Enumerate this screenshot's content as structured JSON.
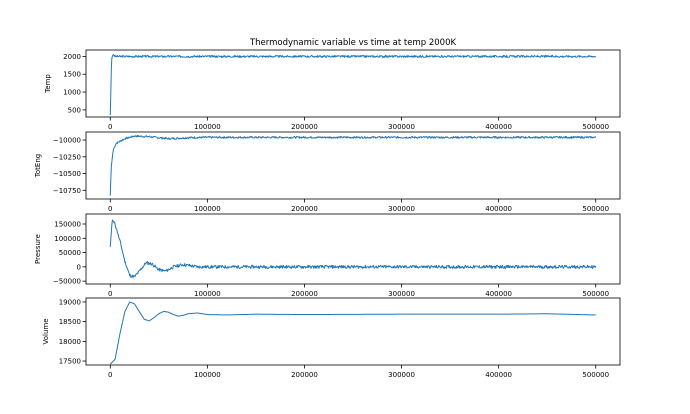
{
  "chart_data": [
    {
      "type": "line",
      "title": "Thermodynamic variable vs time at temp 2000K",
      "ylabel": "Temp",
      "xlim": [
        -25000,
        525000
      ],
      "ylim": [
        300,
        2180
      ],
      "xticks": [
        0,
        100000,
        200000,
        300000,
        400000,
        500000
      ],
      "xtick_labels": [
        "0",
        "100000",
        "200000",
        "300000",
        "400000",
        "500000"
      ],
      "yticks": [
        500,
        1000,
        1500,
        2000
      ],
      "ytick_labels": [
        "500",
        "1000",
        "1500",
        "2000"
      ],
      "series": [
        {
          "name": "Temp",
          "points": [
            [
              0,
              350
            ],
            [
              500,
              900
            ],
            [
              1000,
              1600
            ],
            [
              1500,
              1950
            ],
            [
              3000,
              2060
            ],
            [
              5000,
              2000
            ],
            [
              500000,
              2000
            ]
          ],
          "noise": 28,
          "seed": 3
        }
      ]
    },
    {
      "type": "line",
      "title": "",
      "ylabel": "TotEng",
      "xlim": [
        -25000,
        525000
      ],
      "ylim": [
        -10880,
        -9880
      ],
      "xticks": [
        0,
        100000,
        200000,
        300000,
        400000,
        500000
      ],
      "xtick_labels": [
        "0",
        "100000",
        "200000",
        "300000",
        "400000",
        "500000"
      ],
      "yticks": [
        -10750,
        -10500,
        -10250,
        -10000
      ],
      "ytick_labels": [
        "−10750",
        "−10500",
        "−10250",
        "−10000"
      ],
      "series": [
        {
          "name": "TotEng",
          "points": [
            [
              0,
              -10830
            ],
            [
              1000,
              -10400
            ],
            [
              3000,
              -10150
            ],
            [
              6000,
              -10050
            ],
            [
              15000,
              -9980
            ],
            [
              25000,
              -9940
            ],
            [
              40000,
              -9950
            ],
            [
              60000,
              -9980
            ],
            [
              80000,
              -9965
            ],
            [
              100000,
              -9960
            ],
            [
              500000,
              -9960
            ]
          ],
          "noise": 14,
          "seed": 7
        }
      ]
    },
    {
      "type": "line",
      "title": "",
      "ylabel": "Pressure",
      "xlim": [
        -25000,
        525000
      ],
      "ylim": [
        -60000,
        185000
      ],
      "xticks": [
        0,
        100000,
        200000,
        300000,
        400000,
        500000
      ],
      "xtick_labels": [
        "0",
        "100000",
        "200000",
        "300000",
        "400000",
        "500000"
      ],
      "yticks": [
        -50000,
        0,
        50000,
        100000,
        150000
      ],
      "ytick_labels": [
        "−50000",
        "0",
        "50000",
        "100000",
        "150000"
      ],
      "series": [
        {
          "name": "Pressure",
          "points": [
            [
              0,
              70000
            ],
            [
              2000,
              165000
            ],
            [
              5000,
              150000
            ],
            [
              10000,
              90000
            ],
            [
              15000,
              20000
            ],
            [
              20000,
              -30000
            ],
            [
              25000,
              -35000
            ],
            [
              30000,
              -15000
            ],
            [
              37000,
              15000
            ],
            [
              43000,
              10000
            ],
            [
              50000,
              -10000
            ],
            [
              57000,
              -15000
            ],
            [
              65000,
              0
            ],
            [
              75000,
              8000
            ],
            [
              90000,
              0
            ],
            [
              500000,
              0
            ]
          ],
          "noise": 5500,
          "seed": 11
        }
      ]
    },
    {
      "type": "line",
      "title": "",
      "ylabel": "Volume",
      "xlim": [
        -25000,
        525000
      ],
      "ylim": [
        17400,
        19100
      ],
      "xticks": [
        0,
        100000,
        200000,
        300000,
        400000,
        500000
      ],
      "xtick_labels": [
        "0",
        "100000",
        "200000",
        "300000",
        "400000",
        "500000"
      ],
      "yticks": [
        17500,
        18000,
        18500,
        19000
      ],
      "ytick_labels": [
        "17500",
        "18000",
        "18500",
        "19000"
      ],
      "series": [
        {
          "name": "Volume",
          "points": [
            [
              0,
              17420
            ],
            [
              5000,
              17550
            ],
            [
              10000,
              18200
            ],
            [
              15000,
              18750
            ],
            [
              20000,
              19000
            ],
            [
              25000,
              18950
            ],
            [
              30000,
              18750
            ],
            [
              35000,
              18560
            ],
            [
              40000,
              18520
            ],
            [
              45000,
              18600
            ],
            [
              50000,
              18700
            ],
            [
              55000,
              18760
            ],
            [
              60000,
              18740
            ],
            [
              65000,
              18680
            ],
            [
              70000,
              18640
            ],
            [
              75000,
              18660
            ],
            [
              80000,
              18700
            ],
            [
              90000,
              18720
            ],
            [
              100000,
              18680
            ],
            [
              120000,
              18670
            ],
            [
              150000,
              18690
            ],
            [
              200000,
              18680
            ],
            [
              300000,
              18690
            ],
            [
              400000,
              18690
            ],
            [
              450000,
              18700
            ],
            [
              500000,
              18670
            ]
          ],
          "noise": 0,
          "seed": 1
        }
      ]
    }
  ]
}
